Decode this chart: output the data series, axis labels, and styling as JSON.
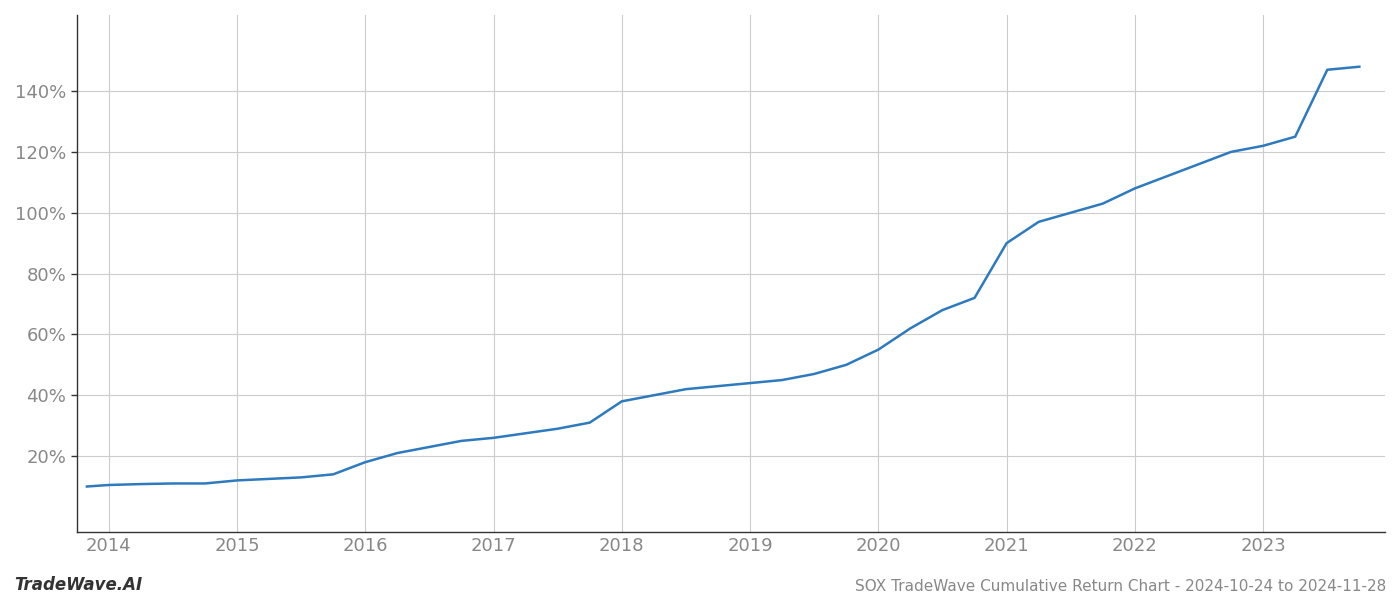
{
  "title": "SOX TradeWave Cumulative Return Chart - 2024-10-24 to 2024-11-28",
  "watermark": "TradeWave.AI",
  "line_color": "#2e7abf",
  "background_color": "#ffffff",
  "grid_color": "#cccccc",
  "tick_color": "#888888",
  "spine_color": "#333333",
  "years": [
    2014,
    2015,
    2016,
    2017,
    2018,
    2019,
    2020,
    2021,
    2022,
    2023
  ],
  "x_values": [
    2013.83,
    2014.0,
    2014.25,
    2014.5,
    2014.75,
    2015.0,
    2015.25,
    2015.5,
    2015.75,
    2016.0,
    2016.25,
    2016.5,
    2016.75,
    2017.0,
    2017.25,
    2017.5,
    2017.75,
    2018.0,
    2018.25,
    2018.5,
    2018.75,
    2019.0,
    2019.25,
    2019.5,
    2019.75,
    2020.0,
    2020.25,
    2020.5,
    2020.75,
    2021.0,
    2021.25,
    2021.5,
    2021.75,
    2022.0,
    2022.25,
    2022.5,
    2022.75,
    2023.0,
    2023.25,
    2023.5,
    2023.75
  ],
  "y_values": [
    10,
    10.5,
    10.8,
    11,
    11,
    12,
    12.5,
    13,
    14,
    18,
    21,
    23,
    25,
    26,
    27.5,
    29,
    31,
    38,
    40,
    42,
    43,
    44,
    45,
    47,
    50,
    55,
    62,
    68,
    72,
    90,
    97,
    100,
    103,
    108,
    112,
    116,
    120,
    122,
    125,
    147,
    148
  ],
  "ylim": [
    -5,
    165
  ],
  "xlim": [
    2013.75,
    2023.95
  ],
  "yticks": [
    20,
    40,
    60,
    80,
    100,
    120,
    140
  ],
  "ytick_labels": [
    "20%",
    "40%",
    "60%",
    "80%",
    "100%",
    "120%",
    "140%"
  ],
  "line_width": 1.8,
  "title_fontsize": 11,
  "tick_fontsize": 13,
  "watermark_fontsize": 12
}
